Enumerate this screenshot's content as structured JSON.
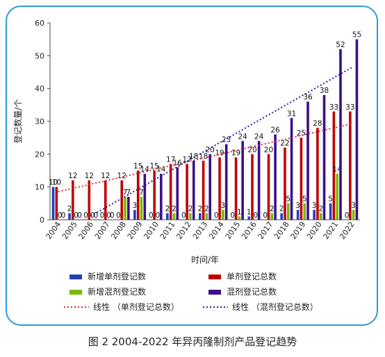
{
  "caption": "图 2  2004-2022 年异丙隆制剂产品登记趋势",
  "chart_data": {
    "type": "bar",
    "title": "",
    "xlabel": "时间/年",
    "ylabel": "登记数量/个",
    "ylim": [
      0,
      60
    ],
    "yticks": [
      0,
      10,
      20,
      30,
      40,
      50,
      60
    ],
    "grid": false,
    "legend_position": "bottom",
    "categories": [
      "2004",
      "2005",
      "2006",
      "2007",
      "2008",
      "2009",
      "2010",
      "2011",
      "2012",
      "2013",
      "2014",
      "2015",
      "2016",
      "2017",
      "2018",
      "2019",
      "2020",
      "2021",
      "2022"
    ],
    "series": [
      {
        "name": "新增单剂登记数",
        "color": "#1f3fbf",
        "values": [
          10,
          2,
          0,
          0,
          0,
          3,
          0,
          2,
          0,
          2,
          0,
          0,
          1,
          0,
          2,
          3,
          3,
          5,
          0
        ]
      },
      {
        "name": "单剂登记总数",
        "color": "#c00000",
        "values": [
          10,
          12,
          12,
          12,
          12,
          15,
          15,
          17,
          17,
          18,
          19,
          19,
          20,
          20,
          22,
          25,
          28,
          33,
          33
        ]
      },
      {
        "name": "新增混剂登记数",
        "color": "#7ab800",
        "values": [
          0,
          0,
          0,
          0,
          7,
          7,
          0,
          2,
          2,
          2,
          3,
          1,
          0,
          2,
          5,
          5,
          2,
          14,
          3
        ]
      },
      {
        "name": "混剂登记总数",
        "color": "#3a0f8c",
        "values": [
          0,
          0,
          0,
          0,
          7,
          14,
          14,
          16,
          18,
          20,
          23,
          24,
          24,
          26,
          31,
          36,
          38,
          52,
          55
        ]
      }
    ],
    "trendlines": [
      {
        "name": "线性 （单剂登记总数）",
        "color": "#d03030",
        "style": "dotted"
      },
      {
        "name": "线性 （混剂登记总数）",
        "color": "#2a1a9c",
        "style": "dotted"
      }
    ]
  }
}
